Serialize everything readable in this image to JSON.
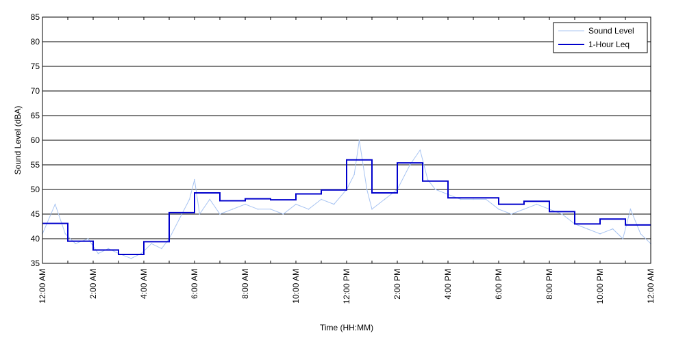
{
  "chart_data": {
    "type": "line",
    "xlabel": "Time (HH:MM)",
    "ylabel": "Sound Level (dBA)",
    "ylim": [
      35,
      85
    ],
    "xlim": [
      0,
      24
    ],
    "y_ticks": [
      35,
      40,
      45,
      50,
      55,
      60,
      65,
      70,
      75,
      80,
      85
    ],
    "x_ticks": [
      {
        "hour": 0,
        "label": "12:00 AM"
      },
      {
        "hour": 2,
        "label": "2:00 AM"
      },
      {
        "hour": 4,
        "label": "4:00 AM"
      },
      {
        "hour": 6,
        "label": "6:00 AM"
      },
      {
        "hour": 8,
        "label": "8:00 AM"
      },
      {
        "hour": 10,
        "label": "10:00 AM"
      },
      {
        "hour": 12,
        "label": "12:00 PM"
      },
      {
        "hour": 14,
        "label": "2:00 PM"
      },
      {
        "hour": 16,
        "label": "4:00 PM"
      },
      {
        "hour": 18,
        "label": "6:00 PM"
      },
      {
        "hour": 20,
        "label": "8:00 PM"
      },
      {
        "hour": 22,
        "label": "10:00 PM"
      },
      {
        "hour": 24,
        "label": "12:00 AM"
      }
    ],
    "grid": "horizontal",
    "legend_position": "top-right",
    "series": [
      {
        "name": "Sound Level",
        "style": "line",
        "color": "#a8c4f2",
        "x": [
          0,
          0.5,
          0.9,
          1.3,
          1.8,
          2.2,
          2.6,
          3.0,
          3.5,
          3.9,
          4.3,
          4.7,
          5.0,
          5.4,
          5.8,
          6.0,
          6.2,
          6.6,
          7.0,
          7.5,
          8.0,
          8.5,
          9.0,
          9.5,
          10.0,
          10.5,
          11.0,
          11.5,
          12.0,
          12.3,
          12.5,
          12.8,
          13.0,
          13.5,
          14.0,
          14.5,
          14.9,
          15.2,
          15.5,
          16.0,
          16.5,
          17.0,
          17.5,
          18.0,
          18.5,
          19.0,
          19.5,
          20.0,
          20.5,
          21.0,
          21.5,
          22.0,
          22.5,
          22.9,
          23.2,
          23.6,
          24.0
        ],
        "y": [
          41,
          47,
          41,
          39,
          40,
          37,
          38,
          37,
          36,
          37,
          39,
          38,
          40,
          44,
          48,
          52,
          45,
          48,
          45,
          46,
          47,
          46,
          46,
          45,
          47,
          46,
          48,
          47,
          50,
          53,
          60,
          50,
          46,
          48,
          50,
          55,
          58,
          52,
          50,
          49,
          48,
          48,
          48,
          46,
          45,
          46,
          47,
          46,
          45,
          43,
          42,
          41,
          42,
          40,
          46,
          41,
          39
        ]
      },
      {
        "name": "1-Hour Leq",
        "style": "step",
        "color": "#0000cc",
        "x": [
          0,
          1,
          2,
          3,
          4,
          5,
          6,
          7,
          8,
          9,
          10,
          11,
          12,
          13,
          14,
          15,
          16,
          17,
          18,
          19,
          20,
          21,
          22,
          23
        ],
        "y": [
          43.1,
          39.5,
          37.7,
          36.8,
          39.4,
          45.3,
          49.3,
          47.7,
          48.1,
          47.9,
          49.1,
          49.9,
          56.0,
          49.3,
          55.4,
          51.7,
          48.3,
          48.3,
          47.0,
          47.6,
          45.5,
          43.0,
          44.0,
          42.8
        ]
      }
    ]
  }
}
